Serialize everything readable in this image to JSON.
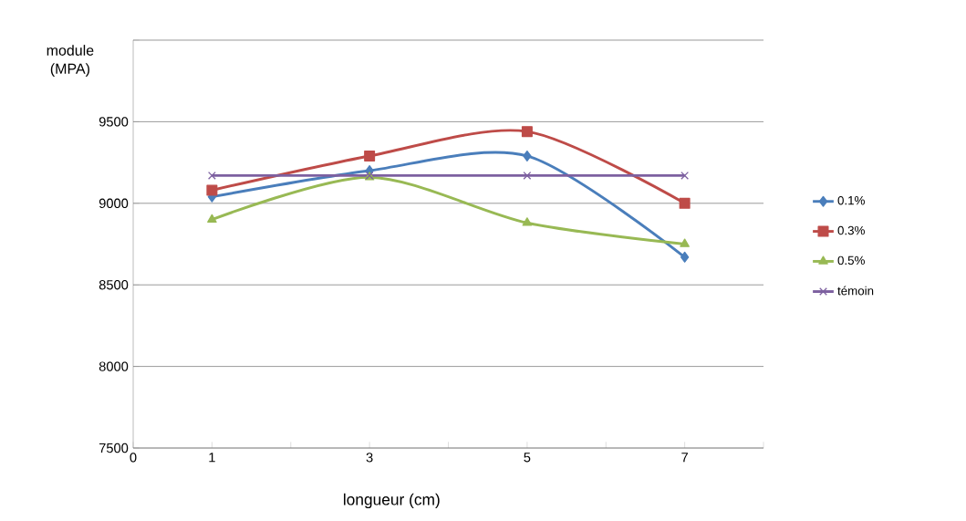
{
  "chart_data": {
    "type": "line",
    "xlabel": "longueur (cm)",
    "ylabel": "module (MPA)",
    "x": [
      1,
      3,
      5,
      7
    ],
    "series": [
      {
        "name": "0.1%",
        "color": "#4a7ebb",
        "marker": "diamond",
        "values": [
          9040,
          9200,
          9290,
          8670
        ]
      },
      {
        "name": "0.3%",
        "color": "#be4b48",
        "marker": "square",
        "values": [
          9080,
          9290,
          9440,
          9000
        ]
      },
      {
        "name": "0.5%",
        "color": "#98b954",
        "marker": "triangle",
        "values": [
          8900,
          9160,
          8880,
          8750
        ]
      },
      {
        "name": "témoin",
        "color": "#7d60a0",
        "marker": "cross",
        "values": [
          9170,
          9170,
          9170,
          9170
        ]
      }
    ],
    "xlim": [
      0,
      8
    ],
    "ylim": [
      7500,
      10000
    ],
    "xticks": [
      0,
      1,
      {
        "value": 2,
        "label": null
      },
      3,
      {
        "value": 4,
        "label": null
      },
      5,
      {
        "value": 6,
        "label": null
      },
      7,
      {
        "value": 8,
        "label": null
      }
    ],
    "yticks": [
      7500,
      8000,
      8500,
      9000,
      9500,
      {
        "value": 10000,
        "label": null
      }
    ],
    "grid": "y",
    "legend": "right",
    "line_style": "solid"
  }
}
